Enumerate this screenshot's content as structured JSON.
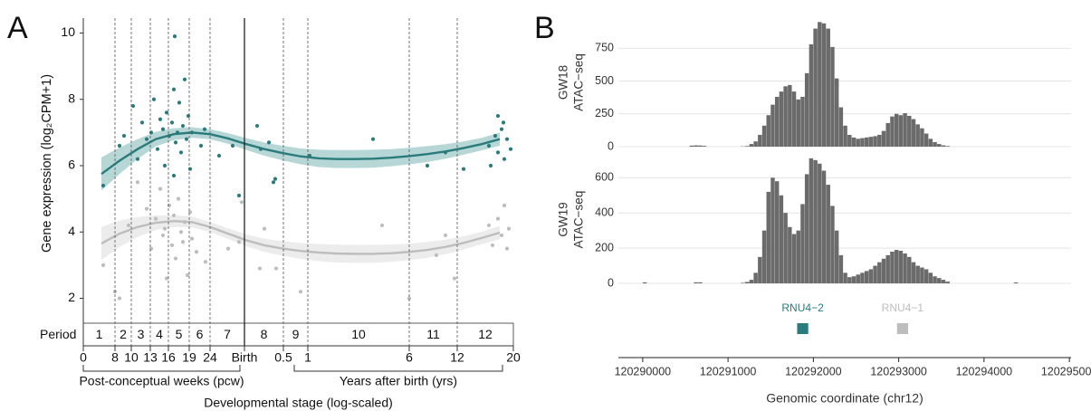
{
  "chart_data": [
    {
      "type": "scatter",
      "panel": "A",
      "ylabel": "Gene expression (log₂CPM+1)",
      "xlabel": "Developmental stage (log-scaled)",
      "stage_groups": [
        "Post-conceptual weeks (pcw)",
        "Years after birth (yrs)"
      ],
      "period_label": "Period",
      "periods": [
        "1",
        "2",
        "3",
        "4",
        "5",
        "6",
        "7",
        "8",
        "9",
        "10",
        "11",
        "12"
      ],
      "xlim": [
        0,
        475
      ],
      "ylim": [
        1.25,
        10.45
      ],
      "yticks": [
        2,
        4,
        6,
        8,
        10
      ],
      "xticks": [
        0,
        {
          "value": 35,
          "label": "8"
        },
        {
          "value": 53,
          "label": "10"
        },
        {
          "value": 74,
          "label": "13"
        },
        {
          "value": 94,
          "label": "16"
        },
        {
          "value": 117,
          "label": "19"
        },
        {
          "value": 140,
          "label": "24"
        },
        {
          "value": 178,
          "label": "Birth"
        },
        {
          "value": 221,
          "label": "0.5"
        },
        {
          "value": 248,
          "label": "1"
        },
        {
          "value": 360,
          "label": "6"
        },
        {
          "value": 413,
          "label": "12"
        },
        {
          "value": 475,
          "label": "20"
        }
      ],
      "xtick_lines": [
        "none",
        "dashed",
        "dashed",
        "dashed",
        "dashed",
        "dashed",
        "dashed",
        "solid",
        "dashed",
        "dashed",
        "dashed",
        "dashed",
        "none"
      ],
      "series": [
        {
          "color": "#2a7b7b",
          "x": [
            22,
            40,
            45,
            55,
            60,
            65,
            70,
            75,
            78,
            82,
            85,
            88,
            90,
            92,
            95,
            98,
            100,
            102,
            104,
            106,
            108,
            110,
            112,
            114,
            116,
            118,
            120,
            130,
            134,
            150,
            165,
            172,
            192,
            196,
            205,
            210,
            212,
            250,
            320,
            380,
            420,
            400,
            448,
            455,
            458,
            462,
            465,
            468,
            472,
            458,
            464,
            101,
            100,
            450
          ],
          "values": [
            5.4,
            6.6,
            6.9,
            7.8,
            6.2,
            7.3,
            6.8,
            7.0,
            8.0,
            6.5,
            7.4,
            7.1,
            6.0,
            7.6,
            6.9,
            7.3,
            8.3,
            6.7,
            7.0,
            7.9,
            6.4,
            7.2,
            8.6,
            6.8,
            7.5,
            5.9,
            7.0,
            6.6,
            7.1,
            6.3,
            6.6,
            5.1,
            7.2,
            6.5,
            6.7,
            5.5,
            5.6,
            6.3,
            6.8,
            6.0,
            5.9,
            6.4,
            6.6,
            6.9,
            6.4,
            7.1,
            6.2,
            6.8,
            6.5,
            7.5,
            7.3,
            9.9,
            5.7,
            6.0
          ]
        },
        {
          "color": "#bdbdbd",
          "x": [
            22,
            35,
            40,
            50,
            60,
            70,
            75,
            80,
            85,
            88,
            90,
            92,
            95,
            98,
            100,
            102,
            105,
            108,
            110,
            112,
            115,
            118,
            120,
            125,
            135,
            160,
            172,
            175,
            195,
            200,
            213,
            240,
            330,
            390,
            400,
            448,
            452,
            458,
            462,
            465,
            468,
            470,
            410,
            360
          ],
          "values": [
            3.0,
            2.2,
            2.0,
            4.2,
            5.5,
            4.7,
            3.5,
            4.4,
            5.3,
            3.9,
            4.1,
            2.6,
            4.8,
            3.6,
            4.5,
            3.2,
            5.0,
            4.0,
            3.7,
            4.3,
            2.7,
            4.6,
            3.8,
            3.4,
            3.1,
            3.5,
            3.7,
            4.9,
            2.9,
            4.1,
            2.9,
            2.2,
            4.2,
            3.3,
            3.9,
            4.2,
            3.6,
            4.4,
            3.9,
            4.8,
            3.5,
            4.1,
            2.6,
            2.0
          ]
        }
      ],
      "trends": [
        {
          "color": "#2a7b7b",
          "band_color": "#9fcaca",
          "x": [
            20,
            40,
            60,
            80,
            100,
            120,
            140,
            160,
            180,
            200,
            220,
            240,
            260,
            280,
            300,
            320,
            340,
            360,
            380,
            400,
            420,
            440,
            460
          ],
          "values": [
            5.75,
            6.15,
            6.5,
            6.8,
            6.95,
            7.0,
            6.95,
            6.82,
            6.65,
            6.5,
            6.38,
            6.28,
            6.22,
            6.2,
            6.2,
            6.21,
            6.24,
            6.29,
            6.35,
            6.43,
            6.53,
            6.65,
            6.8
          ],
          "lower": [
            5.25,
            5.75,
            6.2,
            6.58,
            6.77,
            6.84,
            6.8,
            6.66,
            6.47,
            6.3,
            6.16,
            6.04,
            5.96,
            5.93,
            5.93,
            5.94,
            5.98,
            6.04,
            6.11,
            6.21,
            6.33,
            6.46,
            6.6
          ],
          "upper": [
            6.25,
            6.55,
            6.8,
            7.02,
            7.13,
            7.16,
            7.1,
            6.98,
            6.83,
            6.7,
            6.6,
            6.52,
            6.48,
            6.47,
            6.47,
            6.48,
            6.5,
            6.54,
            6.59,
            6.65,
            6.73,
            6.84,
            7.0
          ]
        },
        {
          "color": "#bdbdbd",
          "band_color": "#e6e6e6",
          "x": [
            20,
            40,
            60,
            80,
            100,
            120,
            140,
            160,
            180,
            200,
            220,
            240,
            260,
            280,
            300,
            320,
            340,
            360,
            380,
            400,
            420,
            440,
            460
          ],
          "values": [
            3.65,
            3.95,
            4.15,
            4.28,
            4.33,
            4.3,
            4.15,
            3.95,
            3.75,
            3.6,
            3.5,
            3.43,
            3.38,
            3.35,
            3.34,
            3.34,
            3.36,
            3.4,
            3.46,
            3.55,
            3.67,
            3.82,
            3.98
          ],
          "lower": [
            3.15,
            3.55,
            3.85,
            4.06,
            4.15,
            4.14,
            4.0,
            3.79,
            3.57,
            3.4,
            3.28,
            3.19,
            3.12,
            3.08,
            3.07,
            3.07,
            3.1,
            3.15,
            3.22,
            3.33,
            3.47,
            3.63,
            3.78
          ],
          "upper": [
            4.15,
            4.35,
            4.45,
            4.5,
            4.51,
            4.46,
            4.3,
            4.11,
            3.93,
            3.8,
            3.72,
            3.67,
            3.64,
            3.62,
            3.61,
            3.61,
            3.62,
            3.65,
            3.7,
            3.77,
            3.87,
            4.01,
            4.18
          ]
        }
      ]
    },
    {
      "type": "histogram",
      "panel": "B",
      "xlabel": "Genomic coordinate (chr12)",
      "xlim": [
        120289715,
        120295020
      ],
      "xticks": [
        120290000,
        120291000,
        120292000,
        120293000,
        120294000,
        120295000
      ],
      "grid": true,
      "bins": [
        120289750,
        120289800,
        120289850,
        120289900,
        120289950,
        120290000,
        120290050,
        120290100,
        120290150,
        120290200,
        120290250,
        120290300,
        120290350,
        120290400,
        120290450,
        120290500,
        120290550,
        120290600,
        120290650,
        120290700,
        120290750,
        120290800,
        120290850,
        120290900,
        120290950,
        120291000,
        120291050,
        120291100,
        120291150,
        120291200,
        120291250,
        120291300,
        120291350,
        120291400,
        120291450,
        120291500,
        120291550,
        120291600,
        120291650,
        120291700,
        120291750,
        120291800,
        120291850,
        120291900,
        120291950,
        120292000,
        120292050,
        120292100,
        120292150,
        120292200,
        120292250,
        120292300,
        120292350,
        120292400,
        120292450,
        120292500,
        120292550,
        120292600,
        120292650,
        120292700,
        120292750,
        120292800,
        120292850,
        120292900,
        120292950,
        120293000,
        120293050,
        120293100,
        120293150,
        120293200,
        120293250,
        120293300,
        120293350,
        120293400,
        120293450,
        120293500,
        120293550,
        120293600,
        120293650,
        120293700,
        120293750,
        120293800,
        120293850,
        120293900,
        120293950,
        120294000,
        120294050,
        120294100,
        120294150,
        120294200,
        120294250,
        120294300,
        120294350,
        120294400,
        120294450,
        120294500,
        120294550,
        120294600,
        120294650,
        120294700,
        120294750
      ],
      "series": [
        {
          "name": "GW18",
          "track": "ATAC−seq",
          "color": "#6b6b6b",
          "ylim": [
            0,
            980
          ],
          "yticks": [
            0,
            250,
            500,
            750
          ],
          "values": [
            0,
            0,
            0,
            0,
            0,
            0,
            0,
            0,
            0,
            0,
            0,
            0,
            0,
            0,
            0,
            0,
            8,
            10,
            9,
            6,
            0,
            0,
            0,
            0,
            0,
            0,
            0,
            0,
            2,
            5,
            20,
            40,
            90,
            160,
            240,
            320,
            380,
            420,
            460,
            470,
            420,
            360,
            380,
            560,
            780,
            900,
            950,
            940,
            900,
            760,
            520,
            300,
            160,
            90,
            70,
            60,
            65,
            70,
            75,
            80,
            90,
            120,
            180,
            230,
            250,
            240,
            255,
            235,
            210,
            170,
            140,
            100,
            60,
            35,
            20,
            10,
            5,
            0,
            0,
            0,
            0,
            0,
            0,
            0,
            0,
            0,
            0,
            0,
            0,
            0,
            0,
            0,
            0,
            0,
            0,
            0,
            0,
            0,
            0,
            0
          ]
        },
        {
          "name": "GW19",
          "track": "ATAC−seq",
          "color": "#6b6b6b",
          "ylim": [
            0,
            725
          ],
          "yticks": [
            0,
            200,
            400,
            600
          ],
          "values": [
            0,
            0,
            0,
            0,
            0,
            6,
            0,
            0,
            0,
            0,
            0,
            0,
            0,
            0,
            0,
            0,
            0,
            6,
            6,
            0,
            0,
            0,
            0,
            0,
            0,
            0,
            0,
            0,
            3,
            8,
            20,
            60,
            150,
            300,
            520,
            600,
            580,
            500,
            400,
            320,
            280,
            300,
            450,
            620,
            710,
            700,
            680,
            640,
            560,
            440,
            300,
            160,
            60,
            35,
            40,
            50,
            60,
            70,
            80,
            100,
            120,
            140,
            160,
            180,
            190,
            185,
            170,
            150,
            120,
            100,
            90,
            80,
            60,
            40,
            30,
            20,
            10,
            0,
            0,
            0,
            0,
            0,
            0,
            0,
            0,
            0,
            0,
            0,
            0,
            0,
            0,
            0,
            5,
            0,
            0,
            0,
            0,
            0,
            0,
            0
          ]
        }
      ],
      "genes": [
        {
          "name": "RNU4−2",
          "color": "#2a7b7b",
          "start": 120291810,
          "end": 120291940
        },
        {
          "name": "RNU4−1",
          "color": "#bdbdbd",
          "start": 120292980,
          "end": 120293110
        }
      ]
    }
  ]
}
